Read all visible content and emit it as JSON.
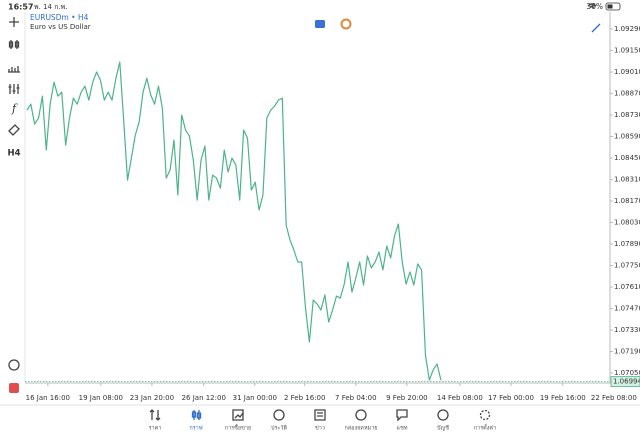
{
  "status_bar": {
    "time": "16:57",
    "date": "พ. 14 ก.พ.",
    "battery": "36%"
  },
  "toolbar": {
    "timeframe": "H4"
  },
  "chart_data": {
    "type": "line",
    "title": "EURUSDm • H4",
    "subtitle": "Euro vs US Dollar",
    "color": "#4cb38a",
    "grid": false,
    "values": [
      1.08762,
      1.08801,
      1.08671,
      1.0871,
      1.08853,
      1.08502,
      1.08801,
      1.08944,
      1.08853,
      1.08879,
      1.08534,
      1.0871,
      1.0884,
      1.08801,
      1.08879,
      1.08918,
      1.08827,
      1.08944,
      1.0901,
      1.08957,
      1.08827,
      1.08879,
      1.08827,
      1.0897,
      1.09075,
      1.08697,
      1.08306,
      1.0845,
      1.08599,
      1.08684,
      1.08879,
      1.0897,
      1.0886,
      1.08801,
      1.08918,
      1.08775,
      1.08319,
      1.08372,
      1.08567,
      1.08209,
      1.0873,
      1.08632,
      1.08593,
      1.08437,
      1.08176,
      1.08437,
      1.08528,
      1.08176,
      1.08339,
      1.08319,
      1.08254,
      1.08502,
      1.08359,
      1.0845,
      1.08404,
      1.08176,
      1.08632,
      1.0858,
      1.08241,
      1.08293,
      1.08111,
      1.08209,
      1.0871,
      1.08762,
      1.08788,
      1.08827,
      1.0884,
      1.08013,
      1.07916,
      1.07851,
      1.07773,
      1.07773,
      1.07473,
      1.07252,
      1.07525,
      1.07499,
      1.0746,
      1.07558,
      1.07382,
      1.0746,
      1.07551,
      1.07538,
      1.07629,
      1.07773,
      1.07577,
      1.07668,
      1.07773,
      1.07623,
      1.07812,
      1.07734,
      1.07773,
      1.07838,
      1.07721,
      1.07877,
      1.07799,
      1.07942,
      1.0802,
      1.07773,
      1.07629,
      1.07708,
      1.07623,
      1.0776,
      1.07721,
      1.07167,
      1.07004,
      1.0707,
      1.07109,
      1.07004
    ],
    "last_price": 1.06994,
    "xlim": [
      -0.5,
      150.7
    ],
    "xticks": [
      {
        "value": 5.4,
        "label": "16 Jan 16:00"
      },
      {
        "value": 19.1,
        "label": "19 Jan 08:00"
      },
      {
        "value": 32.3,
        "label": "23 Jan 20:00"
      },
      {
        "value": 45.7,
        "label": "26 Jan 12:00"
      },
      {
        "value": 58.9,
        "label": "31 Jan 00:00"
      },
      {
        "value": 71.8,
        "label": "2 Feb 16:00"
      },
      {
        "value": 85,
        "label": "7 Feb 04:00"
      },
      {
        "value": 98.2,
        "label": "9 Feb 20:00"
      },
      {
        "value": 111.9,
        "label": "14 Feb 08:00"
      },
      {
        "value": 125.1,
        "label": "17 Feb 00:00"
      },
      {
        "value": 138.5,
        "label": "19 Feb 16:00"
      },
      {
        "value": 151.7,
        "label": "22 Feb 08:00"
      }
    ],
    "ylim": [
      1.06985,
      1.09401
    ],
    "yticks": [
      {
        "value": 1.0929,
        "label": "1.09290"
      },
      {
        "value": 1.0915,
        "label": "1.09150"
      },
      {
        "value": 1.0901,
        "label": "1.09010"
      },
      {
        "value": 1.0887,
        "label": "1.08870"
      },
      {
        "value": 1.0873,
        "label": "1.08730"
      },
      {
        "value": 1.0859,
        "label": "1.08590"
      },
      {
        "value": 1.0845,
        "label": "1.08450"
      },
      {
        "value": 1.0831,
        "label": "1.08310"
      },
      {
        "value": 1.0817,
        "label": "1.08170"
      },
      {
        "value": 1.0803,
        "label": "1.08030"
      },
      {
        "value": 1.0789,
        "label": "1.07890"
      },
      {
        "value": 1.0775,
        "label": "1.07750"
      },
      {
        "value": 1.0761,
        "label": "1.07610"
      },
      {
        "value": 1.0747,
        "label": "1.07470"
      },
      {
        "value": 1.0733,
        "label": "1.07330"
      },
      {
        "value": 1.0719,
        "label": "1.07190"
      },
      {
        "value": 1.0705,
        "label": "1.07050"
      }
    ]
  },
  "tabs": [
    "ราคา",
    "กราฟ",
    "การซื้อขาย",
    "ประวัติ",
    "ข่าว",
    "กล่องจดหมาย",
    "แชท",
    "บัญชี",
    "การตั้งค่า"
  ]
}
